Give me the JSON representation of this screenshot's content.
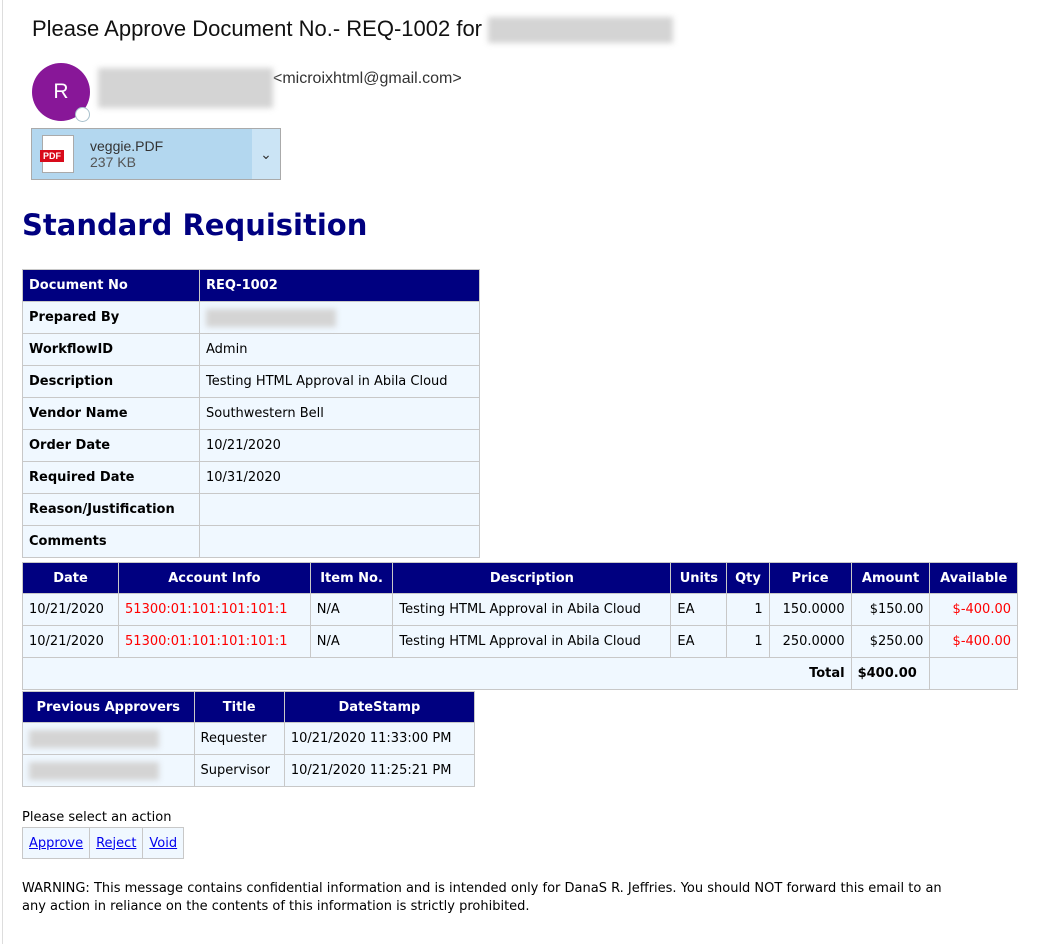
{
  "email": {
    "subject": "Please Approve Document No.- REQ-1002 for",
    "avatar_initial": "R",
    "sender_email": "<microixhtml@gmail.com>",
    "attachment": {
      "name": "veggie.PDF",
      "size": "237 KB",
      "badge": "PDF"
    }
  },
  "title": "Standard Requisition",
  "header_table": {
    "doc_label": "Document No",
    "doc_value": "REQ-1002",
    "rows": [
      {
        "label": "Prepared By",
        "value": ""
      },
      {
        "label": "WorkflowID",
        "value": "Admin"
      },
      {
        "label": "Description",
        "value": "Testing HTML Approval in Abila Cloud"
      },
      {
        "label": "Vendor Name",
        "value": "Southwestern Bell"
      },
      {
        "label": "Order Date",
        "value": "10/21/2020"
      },
      {
        "label": "Required Date",
        "value": "10/31/2020"
      },
      {
        "label": "Reason/Justification",
        "value": ""
      },
      {
        "label": "Comments",
        "value": ""
      }
    ]
  },
  "lines": {
    "columns": [
      "Date",
      "Account Info",
      "Item No.",
      "Description",
      "Units",
      "Qty",
      "Price",
      "Amount",
      "Available"
    ],
    "rows": [
      [
        "10/21/2020",
        "51300:01:101:101:101:1",
        "N/A",
        "Testing HTML Approval in Abila Cloud",
        "EA",
        "1",
        "150.0000",
        "$150.00",
        "$-400.00"
      ],
      [
        "10/21/2020",
        "51300:01:101:101:101:1",
        "N/A",
        "Testing HTML Approval in Abila Cloud",
        "EA",
        "1",
        "250.0000",
        "$250.00",
        "$-400.00"
      ]
    ],
    "total_label": "Total",
    "total_value": "$400.00"
  },
  "approvers": {
    "columns": [
      "Previous Approvers",
      "Title",
      "DateStamp"
    ],
    "rows": [
      {
        "title": "Requester",
        "date": "10/21/2020 11:33:00 PM"
      },
      {
        "title": "Supervisor",
        "date": "10/21/2020 11:25:21 PM"
      }
    ]
  },
  "actions": {
    "prompt": "Please select an action",
    "items": [
      "Approve",
      "Reject",
      "Void"
    ]
  },
  "warning": [
    "WARNING: This message contains confidential information and is intended only for DanaS R. Jeffries. You should NOT forward this email to an",
    "any action in reliance on the contents of this information is strictly prohibited."
  ],
  "colors": {
    "header": "#000080",
    "row": "#f0f8ff",
    "negative": "#ff0000",
    "avatar": "#881798"
  }
}
